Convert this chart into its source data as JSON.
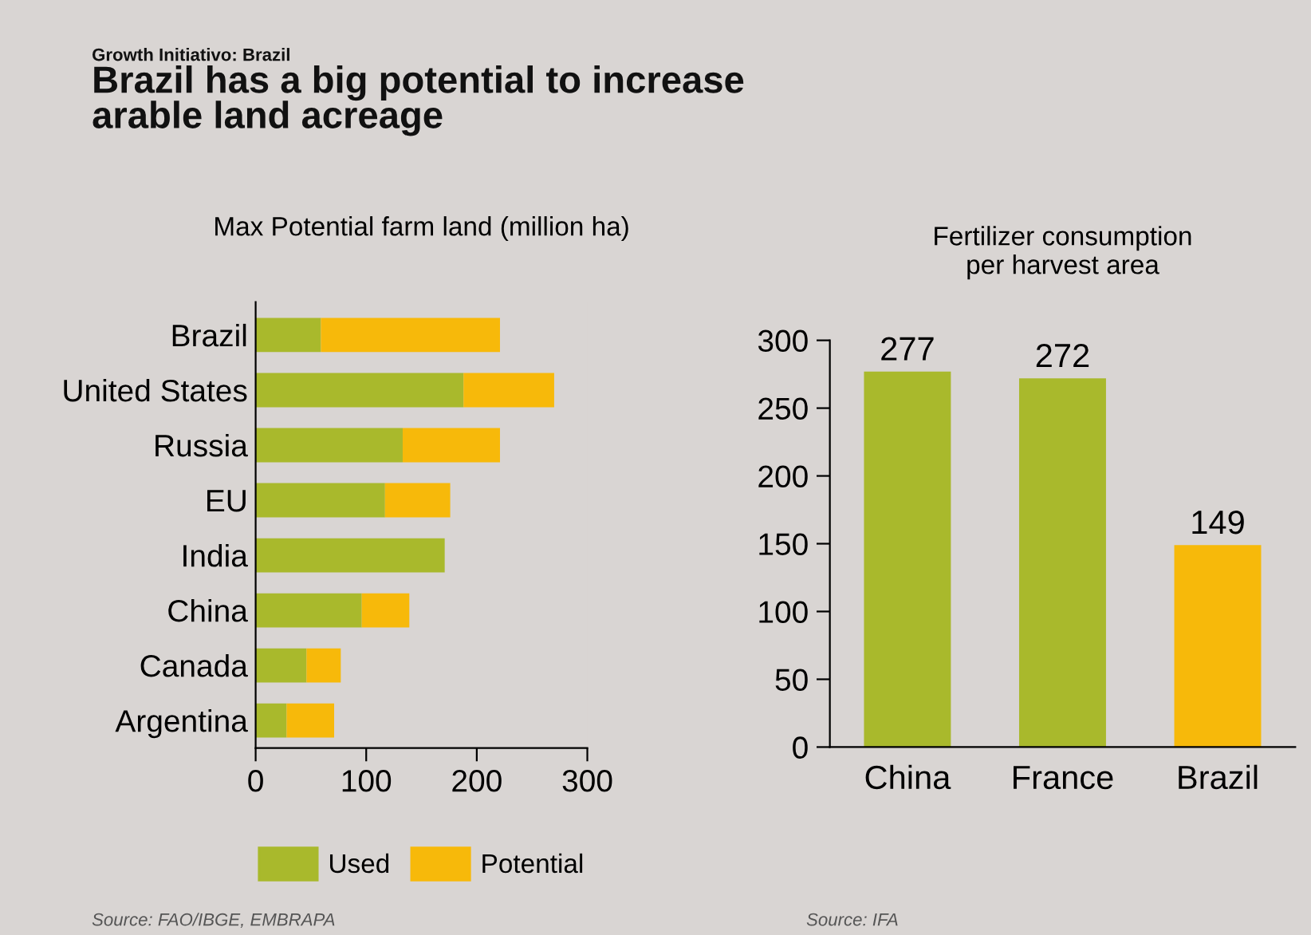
{
  "chart_data": [
    {
      "type": "other",
      "subtitle": "Growth Initiativo: Brazil",
      "title": "Brazil has a big potential to increase\narable land acreage"
    },
    {
      "type": "bar",
      "orientation": "horizontal",
      "stacked": true,
      "title": "Max Potential farm land (million ha)",
      "categories": [
        "Brazil",
        "United States",
        "Russia",
        "EU",
        "India",
        "China",
        "Canada",
        "Argentina"
      ],
      "series": [
        {
          "name": "Used",
          "color": "#a9b92c",
          "values": [
            59,
            188,
            133,
            117,
            171,
            96,
            46,
            28
          ]
        },
        {
          "name": "Potential",
          "color": "#f7b90a",
          "values": [
            162,
            82,
            88,
            59,
            0,
            43,
            31,
            43
          ]
        }
      ],
      "xlim": [
        0,
        300
      ],
      "xticks": [
        0,
        100,
        200,
        300
      ],
      "grid": false,
      "legend": "bottom",
      "annotations": [
        "Source: FAO/IBGE, EMBRAPA"
      ]
    },
    {
      "type": "bar",
      "title": "Fertilizer consumption\nper harvest area",
      "categories": [
        "China",
        "France",
        "Brazil"
      ],
      "values": [
        277,
        272,
        149
      ],
      "colors": [
        "#a9b92c",
        "#a9b92c",
        "#f7b90a"
      ],
      "ylim": [
        0,
        300
      ],
      "yticks": [
        0,
        50,
        100,
        150,
        200,
        250,
        300
      ],
      "grid": false,
      "data_labels": true,
      "annotations": [
        "Source: IFA"
      ]
    }
  ]
}
